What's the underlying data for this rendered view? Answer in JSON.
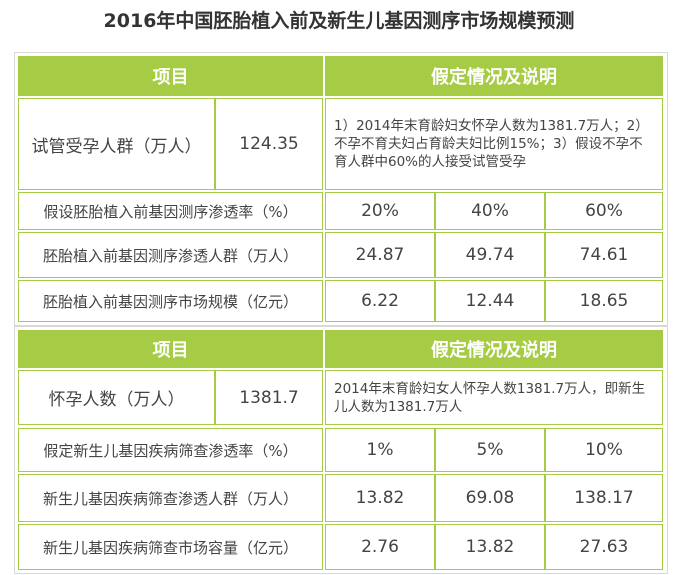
{
  "title": "2016年中国胚胎植入前及新生儿基因测序市场规模预测",
  "tables": [
    {
      "header": [
        "项目",
        "假定情况及说明"
      ],
      "rows": [
        [
          "试管受孕人群（万人）",
          "124.35",
          "1）2014年末育龄妇女怀孕人数为1381.7万人；2）不孕不育夫妇占育龄夫妇比例15%；3）假设不孕不育人群中60%的人接受试管受孕"
        ],
        [
          "假设胚胎植入前基因测序渗透率（%）",
          "20%",
          "40%",
          "60%"
        ],
        [
          "胚胎植入前基因测序渗透人群（万人）",
          "24.87",
          "49.74",
          "74.61"
        ],
        [
          "胚胎植入前基因测序市场规模（亿元）",
          "6.22",
          "12.44",
          "18.65"
        ]
      ]
    },
    {
      "header": [
        "项目",
        "假定情况及说明"
      ],
      "rows": [
        [
          "怀孕人数（万人）",
          "1381.7",
          "2014年末育龄妇女人怀孕人数1381.7万人，即新生儿人数为1381.7万人"
        ],
        [
          "假定新生儿基因疾病筛查渗透率（%）",
          "1%",
          "5%",
          "10%"
        ],
        [
          "新生儿基因疾病筛查渗透人群（万人）",
          "13.82",
          "69.08",
          "138.17"
        ],
        [
          "新生儿基因疾病筛查市场容量（亿元）",
          "2.76",
          "13.82",
          "27.63"
        ]
      ]
    }
  ]
}
